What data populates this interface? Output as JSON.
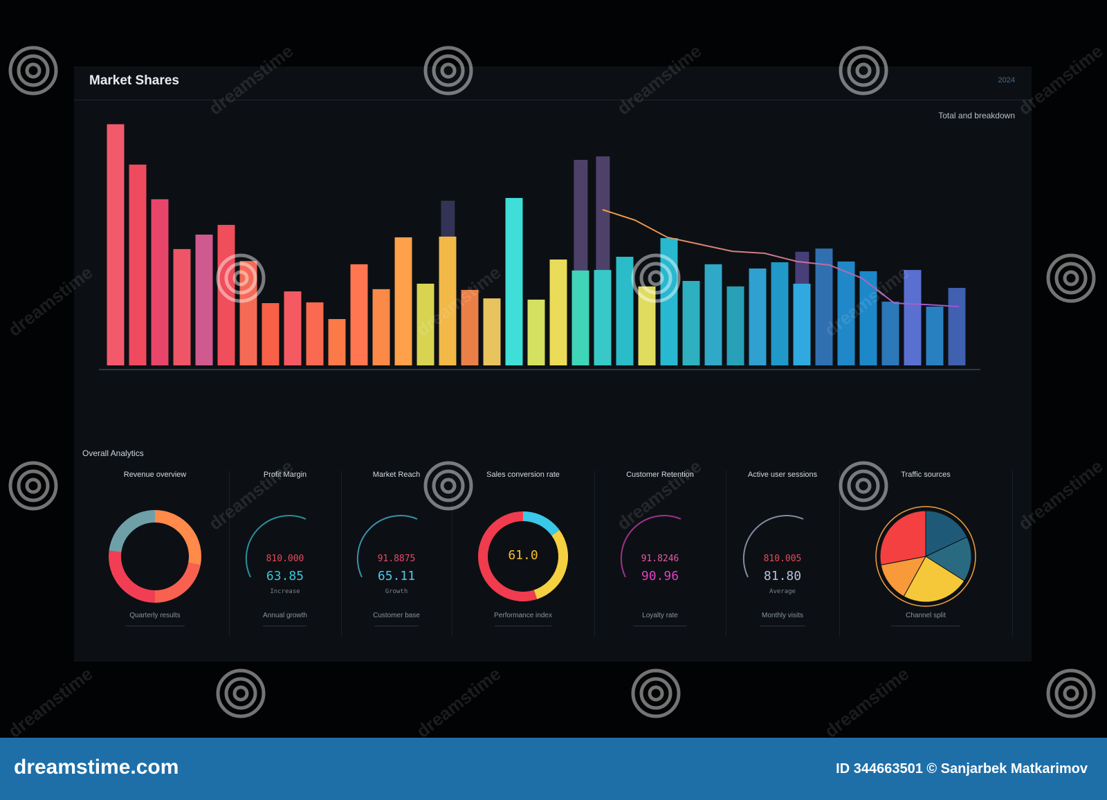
{
  "dashboard": {
    "title": "Market Shares",
    "top_right": "2024",
    "legend_caption": "Total and breakdown",
    "section_title": "Overall Analytics"
  },
  "chart_data": {
    "type": "bar",
    "bars": [
      {
        "value": 96.8,
        "color": "#f25a6c"
      },
      {
        "value": 80.6,
        "color": "#f04a5e"
      },
      {
        "value": 66.7,
        "color": "#e8456a"
      },
      {
        "value": 46.7,
        "color": "#ee5566"
      },
      {
        "value": 52.5,
        "color": "#d05a90"
      },
      {
        "value": 56.4,
        "color": "#f04e5a"
      },
      {
        "value": 41.9,
        "color": "#f46a55"
      },
      {
        "value": 25.0,
        "color": "#f86048"
      },
      {
        "value": 29.7,
        "color": "#f55a62"
      },
      {
        "value": 25.3,
        "color": "#f96a50"
      },
      {
        "value": 18.6,
        "color": "#fb7a48"
      },
      {
        "value": 40.6,
        "color": "#ff7650"
      },
      {
        "value": 30.6,
        "color": "#fb8a48"
      },
      {
        "value": 51.4,
        "color": "#ffa04a"
      },
      {
        "value": 32.8,
        "color": "#d8d452"
      },
      {
        "value": 51.7,
        "color": "#f2b848"
      },
      {
        "value": 30.3,
        "color": "#ea8048"
      },
      {
        "value": 26.9,
        "color": "#e8c45e"
      },
      {
        "value": 67.2,
        "color": "#40ded8"
      },
      {
        "value": 26.4,
        "color": "#d4e060"
      },
      {
        "value": 42.5,
        "color": "#eadc58"
      },
      {
        "value": 38.1,
        "color": "#40d4b8"
      },
      {
        "value": 38.3,
        "color": "#38c8c8"
      },
      {
        "value": 43.6,
        "color": "#2abcc8"
      },
      {
        "value": 31.7,
        "color": "#e0dc60"
      },
      {
        "value": 51.1,
        "color": "#28b8d0"
      },
      {
        "value": 33.9,
        "color": "#2fb0c0"
      },
      {
        "value": 40.6,
        "color": "#30a8c8"
      },
      {
        "value": 31.7,
        "color": "#28a0b8"
      },
      {
        "value": 38.9,
        "color": "#2fa0d0"
      },
      {
        "value": 41.4,
        "color": "#2098c8"
      },
      {
        "value": 32.8,
        "color": "#30a8e0"
      },
      {
        "value": 46.9,
        "color": "#3070b0"
      },
      {
        "value": 41.7,
        "color": "#2088c8"
      },
      {
        "value": 37.8,
        "color": "#1c88c8"
      },
      {
        "value": 25.6,
        "color": "#2c78b8"
      },
      {
        "value": 38.3,
        "color": "#5a70d0"
      },
      {
        "value": 23.6,
        "color": "#2880c0"
      },
      {
        "value": 31.1,
        "color": "#4060b0"
      }
    ],
    "overlay_bars": [
      {
        "value": 66.1,
        "color": "#3a3a60"
      },
      {
        "value": 57.8,
        "color": "#7a6590"
      },
      {
        "value": 82.5,
        "color": "#5a4a78"
      },
      {
        "value": 83.9,
        "color": "#5a4a78"
      },
      {
        "value": 45.6,
        "color": "#54468a"
      }
    ],
    "trend": [
      62.5,
      58.3,
      51.4,
      48.6,
      45.8,
      45.0,
      41.7,
      40.3,
      35.0,
      25.0,
      24.4,
      23.6
    ],
    "ylim": [
      0,
      100
    ]
  },
  "cards": [
    {
      "title": "Revenue overview",
      "footer": "Quarterly results",
      "kind": "donut",
      "segments": [
        {
          "value": 28,
          "color": "#ff8a4a"
        },
        {
          "value": 22,
          "color": "#f86050"
        },
        {
          "value": 27,
          "color": "#f23e54"
        },
        {
          "value": 23,
          "color": "#6fa0a8"
        }
      ]
    },
    {
      "title": "Profit Margin",
      "footer": "Annual growth",
      "kind": "stat",
      "stat_small": "810.000",
      "stat_big": "63.85",
      "stat_sub": "Increase",
      "small_color": "#e84a5a",
      "big_color": "#38c8d8"
    },
    {
      "title": "Market Reach",
      "footer": "Customer base",
      "kind": "stat",
      "stat_small": "91.8875",
      "stat_big": "65.11",
      "stat_sub": "Growth",
      "small_color": "#e84a6a",
      "big_color": "#50c8f0"
    },
    {
      "title": "Sales conversion rate",
      "footer": "Performance index",
      "kind": "ring",
      "center": "61.0",
      "segments": [
        {
          "value": 15,
          "color": "#3ac8e8"
        },
        {
          "value": 30,
          "color": "#f5d040"
        },
        {
          "value": 55,
          "color": "#f03c4e"
        }
      ]
    },
    {
      "title": "Customer Retention",
      "footer": "Loyalty rate",
      "kind": "stat",
      "stat_small": "91.8246",
      "stat_big": "90.96",
      "stat_sub": "",
      "small_color": "#e85aa8",
      "big_color": "#e040c0"
    },
    {
      "title": "Active user sessions",
      "footer": "Monthly visits",
      "kind": "stat",
      "stat_small": "810.005",
      "stat_big": "81.80",
      "stat_sub": "Average",
      "small_color": "#e84a5a",
      "big_color": "#b8c0e0"
    },
    {
      "title": "Traffic sources",
      "footer": "Channel split",
      "kind": "pie",
      "segments": [
        {
          "value": 18,
          "color": "#1e5a78"
        },
        {
          "value": 16,
          "color": "#2a6a80"
        },
        {
          "value": 24,
          "color": "#f5c83a"
        },
        {
          "value": 14,
          "color": "#f89a3a"
        },
        {
          "value": 28,
          "color": "#f44040"
        }
      ]
    }
  ],
  "footer": {
    "brand": "dreamstime.com",
    "credit": "ID 344663501 © Sanjarbek Matkarimov"
  },
  "watermark": {
    "text": "dreamstime"
  }
}
